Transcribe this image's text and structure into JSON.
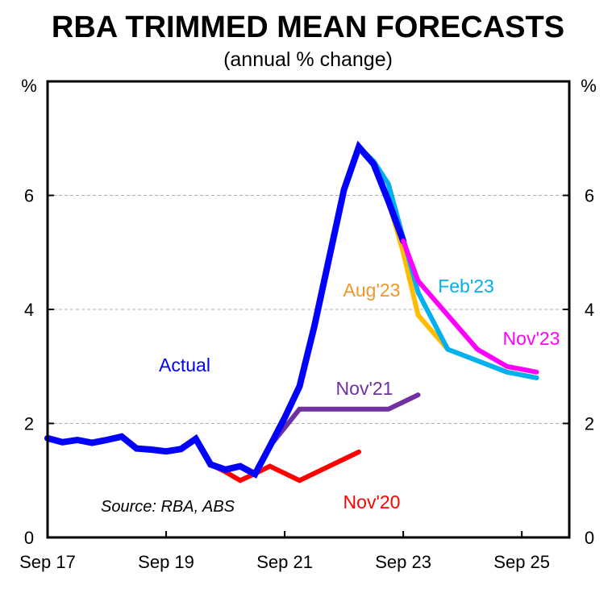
{
  "chart_data": {
    "type": "line",
    "title": "RBA TRIMMED MEAN FORECASTS",
    "subtitle": "(annual % change)",
    "xlabel": "",
    "ylabel_left": "%",
    "ylabel_right": "%",
    "ylim": [
      0,
      8
    ],
    "yticks": [
      0,
      2,
      4,
      6
    ],
    "grid": true,
    "x_quarters": [
      "Sep 17",
      "Dec 17",
      "Mar 18",
      "Jun 18",
      "Sep 18",
      "Dec 18",
      "Mar 19",
      "Jun 19",
      "Sep 19",
      "Dec 19",
      "Mar 20",
      "Jun 20",
      "Sep 20",
      "Dec 20",
      "Mar 21",
      "Jun 21",
      "Sep 21",
      "Dec 21",
      "Mar 22",
      "Jun 22",
      "Sep 22",
      "Dec 22",
      "Mar 23",
      "Jun 23",
      "Sep 23",
      "Dec 23",
      "Mar 24",
      "Jun 24",
      "Sep 24",
      "Dec 24",
      "Mar 25",
      "Jun 25",
      "Sep 25",
      "Dec 25"
    ],
    "xtick_labels": [
      "Sep 17",
      "Sep 19",
      "Sep 21",
      "Sep 23",
      "Sep 25"
    ],
    "series": [
      {
        "name": "Nov'20",
        "color": "#FF0000",
        "label": "Nov'20",
        "points": [
          [
            "Jun 20",
            1.28
          ],
          [
            "Sep 20",
            1.15
          ],
          [
            "Dec 20",
            1.0
          ],
          [
            "Mar 21",
            1.12
          ],
          [
            "Jun 21",
            1.25
          ],
          [
            "Dec 21",
            1.0
          ],
          [
            "Dec 22",
            1.5
          ]
        ]
      },
      {
        "name": "Nov'21",
        "color": "#7030A0",
        "label": "Nov'21",
        "points": [
          [
            "Jun 21",
            1.6
          ],
          [
            "Dec 21",
            2.25
          ],
          [
            "Jun 23",
            2.25
          ],
          [
            "Dec 23",
            2.5
          ]
        ]
      },
      {
        "name": "Aug'23",
        "color": "#FFBC00",
        "label_color": "#F0962A",
        "label": "Aug'23",
        "points": [
          [
            "Jun 23",
            5.9
          ],
          [
            "Sep 23",
            5.0
          ],
          [
            "Dec 23",
            3.9
          ],
          [
            "Jun 24",
            3.3
          ],
          [
            "Jun 25",
            2.9
          ],
          [
            "Dec 25",
            2.8
          ]
        ]
      },
      {
        "name": "Feb'23",
        "color": "#00B0F0",
        "label": "Feb'23",
        "points": [
          [
            "Dec 22",
            6.85
          ],
          [
            "Mar 23",
            6.6
          ],
          [
            "Jun 23",
            6.2
          ],
          [
            "Dec 23",
            4.3
          ],
          [
            "Jun 24",
            3.3
          ],
          [
            "Jun 25",
            2.9
          ],
          [
            "Dec 25",
            2.8
          ]
        ]
      },
      {
        "name": "Actual",
        "color": "#0000FF",
        "label": "Actual",
        "points": [
          [
            "Sep 17",
            1.74
          ],
          [
            "Dec 17",
            1.67
          ],
          [
            "Mar 18",
            1.71
          ],
          [
            "Jun 18",
            1.66
          ],
          [
            "Sep 18",
            1.71
          ],
          [
            "Dec 18",
            1.77
          ],
          [
            "Mar 19",
            1.56
          ],
          [
            "Jun 19",
            1.54
          ],
          [
            "Sep 19",
            1.51
          ],
          [
            "Dec 19",
            1.55
          ],
          [
            "Mar 20",
            1.73
          ],
          [
            "Jun 20",
            1.28
          ],
          [
            "Sep 20",
            1.19
          ],
          [
            "Dec 20",
            1.25
          ],
          [
            "Mar 21",
            1.11
          ],
          [
            "Jun 21",
            1.6
          ],
          [
            "Sep 21",
            2.1
          ],
          [
            "Dec 21",
            2.65
          ],
          [
            "Mar 22",
            3.7
          ],
          [
            "Jun 22",
            4.9
          ],
          [
            "Sep 22",
            6.1
          ],
          [
            "Dec 22",
            6.85
          ],
          [
            "Mar 23",
            6.55
          ],
          [
            "Jun 23",
            5.9
          ],
          [
            "Sep 23",
            5.2
          ]
        ]
      },
      {
        "name": "Nov'23",
        "color": "#FF00FF",
        "label": "Nov'23",
        "points": [
          [
            "Sep 23",
            5.2
          ],
          [
            "Dec 23",
            4.5
          ],
          [
            "Dec 24",
            3.3
          ],
          [
            "Jun 25",
            3.0
          ],
          [
            "Dec 25",
            2.9
          ]
        ]
      }
    ],
    "annotations": [
      "Source: RBA, ABS"
    ]
  }
}
